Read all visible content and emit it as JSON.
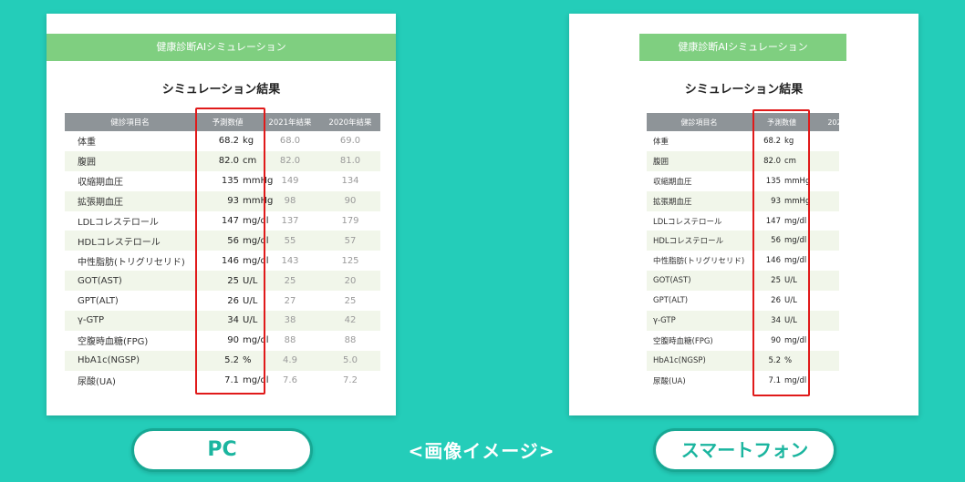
{
  "banner_title": "健康診断AIシミュレーション",
  "result_title": "シミュレーション結果",
  "headers": {
    "item": "健診項目名",
    "predicted": "予測数値",
    "y2021": "2021年結果",
    "y2020": "2020年結果"
  },
  "rows": [
    {
      "item": "体重",
      "pred_num": "68.2",
      "pred_unit": "kg",
      "y2021": "68.0",
      "y2020": "69.0"
    },
    {
      "item": "腹囲",
      "pred_num": "82.0",
      "pred_unit": "cm",
      "y2021": "82.0",
      "y2020": "81.0"
    },
    {
      "item": "収縮期血圧",
      "pred_num": "135",
      "pred_unit": "mmHg",
      "y2021": "149",
      "y2020": "134"
    },
    {
      "item": "拡張期血圧",
      "pred_num": "93",
      "pred_unit": "mmHg",
      "y2021": "98",
      "y2020": "90"
    },
    {
      "item": "LDLコレステロール",
      "pred_num": "147",
      "pred_unit": "mg/dl",
      "y2021": "137",
      "y2020": "179"
    },
    {
      "item": "HDLコレステロール",
      "pred_num": "56",
      "pred_unit": "mg/dl",
      "y2021": "55",
      "y2020": "57"
    },
    {
      "item": "中性脂肪(トリグリセリド)",
      "pred_num": "146",
      "pred_unit": "mg/dl",
      "y2021": "143",
      "y2020": "125"
    },
    {
      "item": "GOT(AST)",
      "pred_num": "25",
      "pred_unit": "U/L",
      "y2021": "25",
      "y2020": "20"
    },
    {
      "item": "GPT(ALT)",
      "pred_num": "26",
      "pred_unit": "U/L",
      "y2021": "27",
      "y2020": "25"
    },
    {
      "item": "γ-GTP",
      "pred_num": "34",
      "pred_unit": "U/L",
      "y2021": "38",
      "y2020": "42"
    },
    {
      "item": "空腹時血糖(FPG)",
      "pred_num": "90",
      "pred_unit": "mg/dl",
      "y2021": "88",
      "y2020": "88"
    },
    {
      "item": "HbA1c(NGSP)",
      "pred_num": "5.2",
      "pred_unit": "%",
      "y2021": "4.9",
      "y2020": "5.0"
    },
    {
      "item": "尿酸(UA)",
      "pred_num": "7.1",
      "pred_unit": "mg/dl",
      "y2021": "7.6",
      "y2020": "7.2"
    }
  ],
  "labels": {
    "pc": "PC",
    "smartphone": "スマートフォン",
    "caption": "<画像イメージ>"
  },
  "colors": {
    "background": "#24cdb9",
    "banner": "#7fcf80",
    "header": "#8e9498",
    "highlight": "#e01a1a",
    "pill_text": "#1bb59f"
  }
}
